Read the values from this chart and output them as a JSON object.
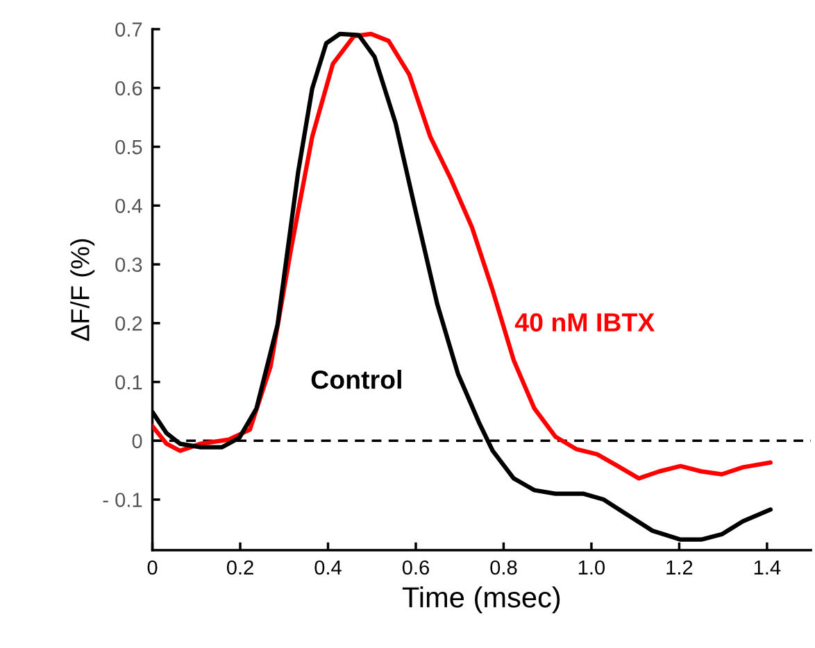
{
  "chart_data": {
    "type": "line",
    "xlabel": "Time (msec)",
    "ylabel": "ΔF/F (%)",
    "xlim": [
      0,
      1.5
    ],
    "ylim": [
      -0.186,
      0.7
    ],
    "xticks": [
      0,
      0.2,
      0.4,
      0.6,
      0.8,
      {
        "value": 1.0,
        "label": "1.0"
      },
      1.2,
      1.4
    ],
    "yticks": [
      {
        "value": -0.1,
        "label": "- 0.1"
      },
      0,
      0.1,
      0.2,
      0.3,
      0.4,
      0.5,
      0.6,
      0.7
    ],
    "grid": false,
    "legend": false,
    "ref_lines": [
      {
        "axis": "y",
        "value": 0,
        "color": "#000000",
        "line_style": "dashed"
      }
    ],
    "series": [
      {
        "name": "Control",
        "color": "#000000",
        "x": [
          0,
          0.032,
          0.063,
          0.11,
          0.158,
          0.198,
          0.237,
          0.285,
          0.332,
          0.364,
          0.396,
          0.427,
          0.47,
          0.506,
          0.554,
          0.601,
          0.649,
          0.696,
          0.744,
          0.775,
          0.823,
          0.87,
          0.918,
          0.981,
          1.028,
          1.076,
          1.139,
          1.203,
          1.25,
          1.297,
          1.345,
          1.408
        ],
        "values": [
          0.049,
          0.013,
          -0.005,
          -0.011,
          -0.011,
          0.005,
          0.055,
          0.197,
          0.457,
          0.599,
          0.676,
          0.692,
          0.69,
          0.653,
          0.54,
          0.386,
          0.232,
          0.114,
          0.031,
          -0.017,
          -0.064,
          -0.084,
          -0.09,
          -0.09,
          -0.1,
          -0.123,
          -0.153,
          -0.168,
          -0.168,
          -0.159,
          -0.137,
          -0.117
        ]
      },
      {
        "name": "40 nM IBTX",
        "color": "#ff0000",
        "x": [
          0,
          0.032,
          0.063,
          0.11,
          0.174,
          0.222,
          0.269,
          0.316,
          0.364,
          0.411,
          0.459,
          0.498,
          0.538,
          0.585,
          0.633,
          0.68,
          0.728,
          0.775,
          0.823,
          0.87,
          0.918,
          0.965,
          1.013,
          1.06,
          1.108,
          1.155,
          1.203,
          1.25,
          1.297,
          1.345,
          1.408
        ],
        "values": [
          0.025,
          -0.005,
          -0.017,
          -0.005,
          0.002,
          0.019,
          0.126,
          0.327,
          0.517,
          0.641,
          0.688,
          0.692,
          0.68,
          0.623,
          0.517,
          0.445,
          0.363,
          0.256,
          0.137,
          0.055,
          0.007,
          -0.014,
          -0.023,
          -0.043,
          -0.064,
          -0.052,
          -0.043,
          -0.052,
          -0.057,
          -0.045,
          -0.037
        ]
      }
    ]
  }
}
